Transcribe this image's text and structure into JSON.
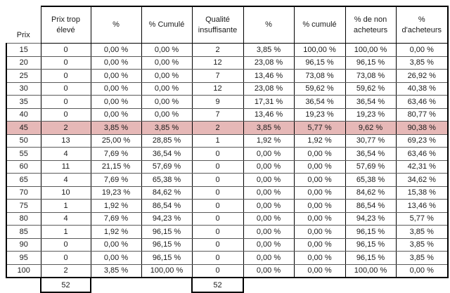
{
  "table": {
    "headers": [
      "Prix",
      "Prix trop élevé",
      "%",
      "% Cumulé",
      "Qualité insuffisante",
      "%",
      "% cumulé",
      "% de non acheteurs",
      "% d'acheteurs"
    ],
    "rows": [
      [
        "15",
        "0",
        "0,00 %",
        "0,00 %",
        "2",
        "3,85 %",
        "100,00 %",
        "100,00 %",
        "0,00 %"
      ],
      [
        "20",
        "0",
        "0,00 %",
        "0,00 %",
        "12",
        "23,08 %",
        "96,15 %",
        "96,15 %",
        "3,85 %"
      ],
      [
        "25",
        "0",
        "0,00 %",
        "0,00 %",
        "7",
        "13,46 %",
        "73,08 %",
        "73,08 %",
        "26,92 %"
      ],
      [
        "30",
        "0",
        "0,00 %",
        "0,00 %",
        "12",
        "23,08 %",
        "59,62 %",
        "59,62 %",
        "40,38 %"
      ],
      [
        "35",
        "0",
        "0,00 %",
        "0,00 %",
        "9",
        "17,31 %",
        "36,54 %",
        "36,54 %",
        "63,46 %"
      ],
      [
        "40",
        "0",
        "0,00 %",
        "0,00 %",
        "7",
        "13,46 %",
        "19,23 %",
        "19,23 %",
        "80,77 %"
      ],
      [
        "45",
        "2",
        "3,85 %",
        "3,85 %",
        "2",
        "3,85 %",
        "5,77 %",
        "9,62 %",
        "90,38 %"
      ],
      [
        "50",
        "13",
        "25,00 %",
        "28,85 %",
        "1",
        "1,92 %",
        "1,92 %",
        "30,77 %",
        "69,23 %"
      ],
      [
        "55",
        "4",
        "7,69 %",
        "36,54 %",
        "0",
        "0,00 %",
        "0,00 %",
        "36,54 %",
        "63,46 %"
      ],
      [
        "60",
        "11",
        "21,15 %",
        "57,69 %",
        "0",
        "0,00 %",
        "0,00 %",
        "57,69 %",
        "42,31 %"
      ],
      [
        "65",
        "4",
        "7,69 %",
        "65,38 %",
        "0",
        "0,00 %",
        "0,00 %",
        "65,38 %",
        "34,62 %"
      ],
      [
        "70",
        "10",
        "19,23 %",
        "84,62 %",
        "0",
        "0,00 %",
        "0,00 %",
        "84,62 %",
        "15,38 %"
      ],
      [
        "75",
        "1",
        "1,92 %",
        "86,54 %",
        "0",
        "0,00 %",
        "0,00 %",
        "86,54 %",
        "13,46 %"
      ],
      [
        "80",
        "4",
        "7,69 %",
        "94,23 %",
        "0",
        "0,00 %",
        "0,00 %",
        "94,23 %",
        "5,77 %"
      ],
      [
        "85",
        "1",
        "1,92 %",
        "96,15 %",
        "0",
        "0,00 %",
        "0,00 %",
        "96,15 %",
        "3,85 %"
      ],
      [
        "90",
        "0",
        "0,00 %",
        "96,15 %",
        "0",
        "0,00 %",
        "0,00 %",
        "96,15 %",
        "3,85 %"
      ],
      [
        "95",
        "0",
        "0,00 %",
        "96,15 %",
        "0",
        "0,00 %",
        "0,00 %",
        "96,15 %",
        "3,85 %"
      ],
      [
        "100",
        "2",
        "3,85 %",
        "100,00 %",
        "0",
        "0,00 %",
        "0,00 %",
        "100,00 %",
        "0,00 %"
      ]
    ],
    "highlight": {
      "row_index": 6,
      "color": "#e6b8b7"
    },
    "footer": {
      "total_prix_trop_eleve": "52",
      "total_qualite_insuffisante": "52"
    }
  }
}
